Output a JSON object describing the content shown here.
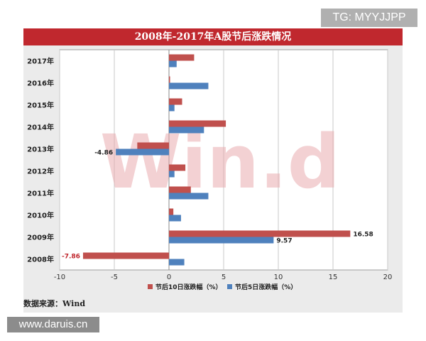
{
  "badges": {
    "top_right": "TG: MYYJJPP",
    "bottom_left": "www.daruis.cn"
  },
  "watermark": "Win.d",
  "source_note": "数据来源：Wind",
  "colors": {
    "title_bg": "#c0282e",
    "series_10d": "#c0504d",
    "series_5d": "#4f81bd",
    "watermark": "#e8a4a8"
  },
  "chart_data": {
    "type": "bar",
    "orientation": "horizontal",
    "title": "2008年-2017年A股节后涨跌情况",
    "categories": [
      "2008年",
      "2009年",
      "2010年",
      "2011年",
      "2012年",
      "2013年",
      "2014年",
      "2015年",
      "2016年",
      "2017年"
    ],
    "series": [
      {
        "name": "节后10日涨跌幅（%）",
        "values": [
          -7.86,
          16.58,
          0.4,
          2.0,
          1.5,
          -2.9,
          5.2,
          1.2,
          0.1,
          2.3
        ]
      },
      {
        "name": "节后5日涨跌幅（%）",
        "values": [
          1.4,
          9.57,
          1.1,
          3.6,
          0.5,
          -4.86,
          3.2,
          0.5,
          3.6,
          0.7
        ]
      }
    ],
    "data_labels": [
      {
        "series": 0,
        "category": "2008年",
        "text": "-7.86"
      },
      {
        "series": 0,
        "category": "2009年",
        "text": "16.58"
      },
      {
        "series": 1,
        "category": "2009年",
        "text": "9.57"
      },
      {
        "series": 1,
        "category": "2013年",
        "text": "-4.86"
      }
    ],
    "xlim": [
      -10,
      20
    ],
    "xticks": [
      "-10",
      "-5",
      "0",
      "5",
      "10",
      "15",
      "20"
    ],
    "xtick_values": [
      -10,
      -5,
      0,
      5,
      10,
      15,
      20
    ],
    "grid": "vertical",
    "legend_position": "bottom"
  }
}
